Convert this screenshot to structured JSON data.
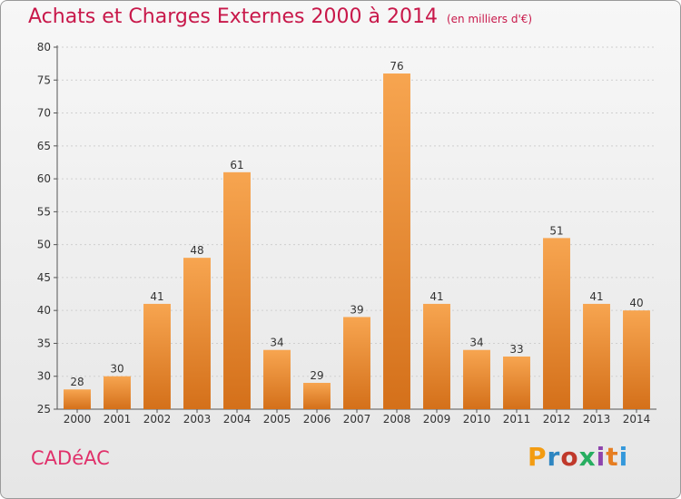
{
  "header": {
    "title": "Achats et Charges Externes 2000 à 2014",
    "subtitle": "(en milliers d'€)"
  },
  "footer": {
    "commune": "CADéAC",
    "logo": {
      "letters": [
        "P",
        "r",
        "o",
        "x",
        "i",
        "t",
        "i"
      ],
      "colors": [
        "#f39c12",
        "#2e86c1",
        "#c0392b",
        "#27ae60",
        "#8e44ad",
        "#e67e22",
        "#3498db"
      ]
    }
  },
  "chart_data": {
    "type": "bar",
    "categories": [
      "2000",
      "2001",
      "2002",
      "2003",
      "2004",
      "2005",
      "2006",
      "2007",
      "2008",
      "2009",
      "2010",
      "2011",
      "2012",
      "2013",
      "2014"
    ],
    "values": [
      28,
      30,
      41,
      48,
      61,
      34,
      29,
      39,
      76,
      41,
      34,
      33,
      51,
      41,
      40
    ],
    "title": "Achats et Charges Externes 2000 à 2014",
    "xlabel": "",
    "ylabel": "",
    "ylim": [
      25,
      80
    ],
    "yticks": [
      25,
      30,
      35,
      40,
      45,
      50,
      55,
      60,
      65,
      70,
      75,
      80
    ],
    "grid": true,
    "bar_color": "#f0952e"
  }
}
